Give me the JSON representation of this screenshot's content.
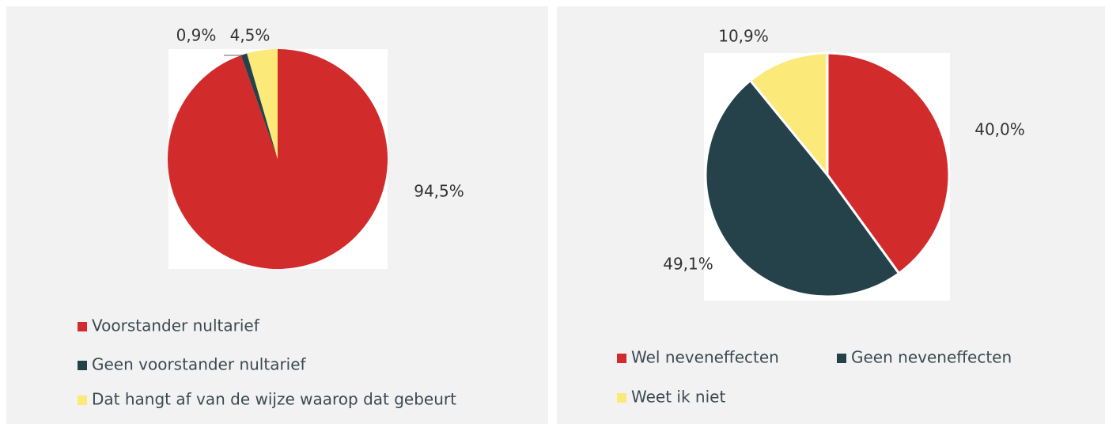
{
  "chart_data": [
    {
      "type": "pie",
      "categories": [
        "Voorstander nultarief",
        "Geen voorstander nultarief",
        "Dat hangt af van de wijze waarop dat gebeurt"
      ],
      "values": [
        94.5,
        0.9,
        4.5
      ],
      "value_labels": [
        "94,5%",
        "0,9%",
        "4,5%"
      ],
      "colors": [
        "#d22b2b",
        "#25424b",
        "#fbe97a"
      ]
    },
    {
      "type": "pie",
      "categories": [
        "Wel neveneffecten",
        "Geen neveneffecten",
        "Weet ik niet"
      ],
      "values": [
        40.0,
        49.1,
        10.9
      ],
      "value_labels": [
        "40,0%",
        "49,1%",
        "10,9%"
      ],
      "colors": [
        "#d22b2b",
        "#25424b",
        "#fbe97a"
      ]
    }
  ]
}
